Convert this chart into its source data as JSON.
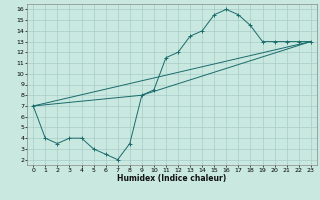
{
  "xlabel": "Humidex (Indice chaleur)",
  "ylabel": "",
  "xlim": [
    -0.5,
    23.5
  ],
  "ylim": [
    1.5,
    16.5
  ],
  "xticks": [
    0,
    1,
    2,
    3,
    4,
    5,
    6,
    7,
    8,
    9,
    10,
    11,
    12,
    13,
    14,
    15,
    16,
    17,
    18,
    19,
    20,
    21,
    22,
    23
  ],
  "yticks": [
    2,
    3,
    4,
    5,
    6,
    7,
    8,
    9,
    10,
    11,
    12,
    13,
    14,
    15,
    16
  ],
  "bg_color": "#c8e8e0",
  "line_color": "#1a6b6b",
  "grid_color": "#a8ccc8",
  "line1_x": [
    0,
    1,
    2,
    3,
    4,
    5,
    6,
    7,
    8,
    9,
    10,
    11,
    12,
    13,
    14,
    15,
    16,
    17,
    18,
    19,
    20,
    21,
    22,
    23
  ],
  "line1_y": [
    7,
    4,
    3.5,
    4,
    4,
    3,
    2.5,
    2,
    3.5,
    8,
    8.5,
    11.5,
    12,
    13.5,
    14,
    15.5,
    16,
    15.5,
    14.5,
    13,
    13,
    13,
    13,
    13
  ],
  "line2_x": [
    0,
    23
  ],
  "line2_y": [
    7,
    13
  ],
  "line3_x": [
    0,
    9,
    23
  ],
  "line3_y": [
    7,
    8,
    13
  ]
}
